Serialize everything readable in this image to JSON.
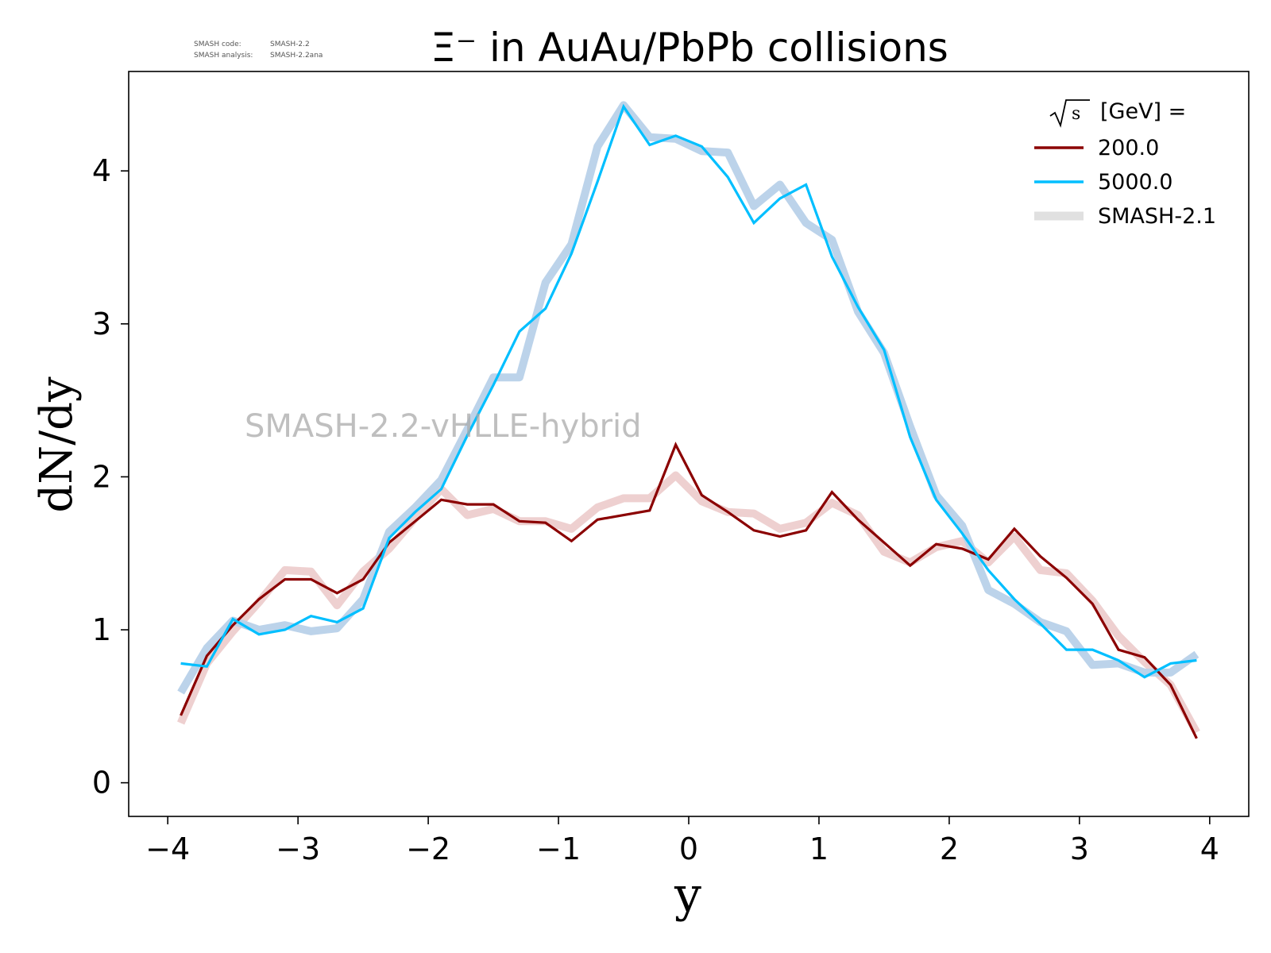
{
  "chart_data": {
    "type": "line",
    "title": "Ξ⁻ in AuAu/PbPb collisions",
    "xlabel": "y",
    "ylabel": "dN/dy",
    "xlim": [
      -4.3,
      4.3
    ],
    "ylim": [
      -0.22,
      4.65
    ],
    "xticks": [
      -4,
      -3,
      -2,
      -1,
      0,
      1,
      2,
      3,
      4
    ],
    "xtick_labels": [
      "−4",
      "−3",
      "−2",
      "−1",
      "0",
      "1",
      "2",
      "3",
      "4"
    ],
    "yticks": [
      0,
      1,
      2,
      3,
      4
    ],
    "ytick_labels": [
      "0",
      "1",
      "2",
      "3",
      "4"
    ],
    "grid": false,
    "legend": {
      "placement": "top-right",
      "title_sqrt": "s",
      "title_rest": " [GeV] =",
      "entries": [
        "200.0",
        "5000.0",
        "SMASH-2.1"
      ]
    },
    "annotations": {
      "version_line1_key": "SMASH code:",
      "version_line1_val": "SMASH-2.2",
      "version_line2_key": "SMASH analysis:",
      "version_line2_val": "SMASH-2.2ana",
      "watermark": "SMASH-2.2-vHLLE-hybrid"
    },
    "x": [
      -3.9,
      -3.7,
      -3.5,
      -3.3,
      -3.1,
      -2.9,
      -2.7,
      -2.5,
      -2.3,
      -2.1,
      -1.9,
      -1.7,
      -1.5,
      -1.3,
      -1.1,
      -0.9,
      -0.7,
      -0.5,
      -0.3,
      -0.1,
      0.1,
      0.3,
      0.5,
      0.7,
      0.9,
      1.1,
      1.3,
      1.5,
      1.7,
      1.9,
      2.1,
      2.3,
      2.5,
      2.7,
      2.9,
      3.1,
      3.3,
      3.5,
      3.7,
      3.9
    ],
    "series": [
      {
        "name": "200.0",
        "color": "#8b0000",
        "values": [
          0.44,
          0.83,
          1.03,
          1.2,
          1.33,
          1.33,
          1.24,
          1.33,
          1.57,
          1.71,
          1.85,
          1.82,
          1.82,
          1.71,
          1.7,
          1.58,
          1.72,
          1.75,
          1.78,
          2.21,
          1.88,
          1.77,
          1.65,
          1.61,
          1.65,
          1.9,
          1.72,
          1.57,
          1.42,
          1.56,
          1.53,
          1.46,
          1.66,
          1.48,
          1.34,
          1.17,
          0.87,
          0.82,
          0.64,
          0.29
        ]
      },
      {
        "name": "5000.0",
        "color": "#00bfff",
        "values": [
          0.78,
          0.76,
          1.07,
          0.97,
          1.0,
          1.09,
          1.05,
          1.14,
          1.6,
          1.77,
          1.92,
          2.27,
          2.6,
          2.95,
          3.1,
          3.46,
          3.93,
          4.42,
          4.17,
          4.23,
          4.16,
          3.96,
          3.66,
          3.82,
          3.91,
          3.44,
          3.11,
          2.83,
          2.26,
          1.85,
          1.63,
          1.39,
          1.2,
          1.04,
          0.87,
          0.87,
          0.8,
          0.69,
          0.78,
          0.8
        ]
      },
      {
        "name": "SMASH-2.1 200.0",
        "color": "#eed0d0",
        "values": [
          0.39,
          0.78,
          0.99,
          1.18,
          1.39,
          1.38,
          1.16,
          1.38,
          1.53,
          1.73,
          1.92,
          1.75,
          1.79,
          1.71,
          1.71,
          1.66,
          1.8,
          1.86,
          1.86,
          2.01,
          1.84,
          1.77,
          1.76,
          1.66,
          1.7,
          1.83,
          1.75,
          1.51,
          1.44,
          1.54,
          1.58,
          1.44,
          1.61,
          1.39,
          1.37,
          1.19,
          0.96,
          0.79,
          0.64,
          0.33
        ]
      },
      {
        "name": "SMASH-2.1 5000.0",
        "color": "#bcd3ea",
        "values": [
          0.59,
          0.88,
          1.06,
          1.0,
          1.03,
          0.99,
          1.01,
          1.2,
          1.64,
          1.8,
          1.98,
          2.31,
          2.65,
          2.65,
          3.27,
          3.52,
          4.16,
          4.43,
          4.22,
          4.21,
          4.13,
          4.12,
          3.77,
          3.91,
          3.66,
          3.55,
          3.08,
          2.81,
          2.33,
          1.88,
          1.68,
          1.26,
          1.17,
          1.05,
          0.99,
          0.77,
          0.78,
          0.72,
          0.72,
          0.84
        ]
      }
    ]
  }
}
